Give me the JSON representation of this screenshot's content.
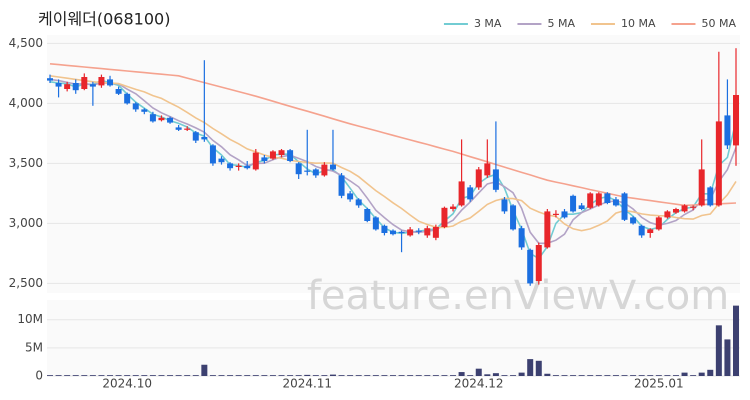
{
  "chart_data": [
    {
      "type": "candlestick",
      "title": "케이웨더(068100)",
      "annotations": [
        "feature.enViewV.com"
      ],
      "categories": [
        null,
        null,
        null,
        null,
        null,
        null,
        null,
        null,
        null,
        "2024.10",
        null,
        null,
        null,
        null,
        null,
        null,
        null,
        null,
        null,
        null,
        null,
        null,
        null,
        null,
        null,
        null,
        null,
        null,
        null,
        null,
        "2024.11",
        null,
        null,
        null,
        null,
        null,
        null,
        null,
        null,
        null,
        null,
        null,
        null,
        null,
        null,
        null,
        null,
        null,
        null,
        null,
        "2024.12",
        null,
        null,
        null,
        null,
        null,
        null,
        null,
        null,
        null,
        null,
        null,
        null,
        null,
        null,
        null,
        null,
        null,
        null,
        null,
        null,
        "2025.01",
        null,
        null,
        null,
        null,
        null,
        null,
        null,
        null,
        null
      ],
      "open": [
        4210,
        4170,
        4120,
        4170,
        4120,
        4160,
        4150,
        4200,
        4120,
        4080,
        4000,
        3950,
        3910,
        3860,
        3880,
        3800,
        3780,
        3760,
        3720,
        3650,
        3540,
        3500,
        3470,
        3480,
        3450,
        3550,
        3540,
        3570,
        3610,
        3500,
        3440,
        3450,
        3400,
        3490,
        3400,
        3250,
        3200,
        3120,
        3050,
        2980,
        2940,
        2930,
        2900,
        2940,
        2900,
        2880,
        2970,
        3120,
        3150,
        3300,
        3300,
        3400,
        3450,
        3200,
        3150,
        2960,
        2780,
        2520,
        2800,
        3070,
        3100,
        3230,
        3150,
        3130,
        3150,
        3250,
        3200,
        3250,
        3050,
        2980,
        2920,
        2950,
        3050,
        3090,
        3100,
        3130,
        3150,
        3300,
        3150,
        3900,
        3650
      ],
      "high": [
        4240,
        4200,
        4180,
        4200,
        4250,
        4180,
        4240,
        4230,
        4140,
        4090,
        4010,
        3960,
        3930,
        3900,
        3890,
        3820,
        3810,
        3770,
        4360,
        3660,
        3560,
        3510,
        3500,
        3520,
        3620,
        3570,
        3610,
        3620,
        3620,
        3510,
        3780,
        3460,
        3510,
        3780,
        3420,
        3270,
        3210,
        3130,
        3060,
        2990,
        2950,
        2940,
        2970,
        2960,
        2980,
        2990,
        3140,
        3160,
        3700,
        3320,
        3470,
        3700,
        3850,
        3220,
        3160,
        2980,
        2790,
        2840,
        3120,
        3110,
        3120,
        3240,
        3170,
        3260,
        3260,
        3260,
        3220,
        3260,
        3060,
        2990,
        2960,
        3060,
        3110,
        3130,
        3160,
        3150,
        3700,
        3310,
        4430,
        4200,
        4460
      ],
      "low": [
        4170,
        4050,
        4100,
        4080,
        4110,
        3980,
        4130,
        4140,
        4070,
        3990,
        3930,
        3910,
        3840,
        3850,
        3830,
        3770,
        3770,
        3670,
        3680,
        3480,
        3490,
        3440,
        3440,
        3450,
        3440,
        3500,
        3530,
        3550,
        3510,
        3370,
        3400,
        3380,
        3390,
        3440,
        3210,
        3180,
        3130,
        3010,
        2940,
        2900,
        2900,
        2760,
        2890,
        2910,
        2880,
        2860,
        2960,
        3100,
        3140,
        3180,
        3280,
        3380,
        3260,
        3080,
        2940,
        2780,
        2480,
        2490,
        2790,
        3050,
        3040,
        3090,
        3110,
        3120,
        3140,
        3160,
        3140,
        3020,
        2990,
        2880,
        2880,
        2940,
        3040,
        3080,
        3090,
        3110,
        3140,
        3140,
        3140,
        3620,
        3480
      ],
      "close": [
        4190,
        4140,
        4160,
        4110,
        4220,
        4140,
        4220,
        4150,
        4080,
        4000,
        3950,
        3930,
        3850,
        3880,
        3840,
        3780,
        3790,
        3690,
        3700,
        3500,
        3510,
        3460,
        3480,
        3460,
        3590,
        3520,
        3600,
        3610,
        3520,
        3410,
        3430,
        3400,
        3490,
        3450,
        3230,
        3200,
        3150,
        3020,
        2950,
        2920,
        2910,
        2920,
        2950,
        2930,
        2960,
        2970,
        3130,
        3140,
        3350,
        3200,
        3450,
        3500,
        3280,
        3100,
        2950,
        2800,
        2500,
        2820,
        3100,
        3080,
        3050,
        3100,
        3120,
        3250,
        3250,
        3170,
        3150,
        3030,
        3000,
        2900,
        2950,
        3050,
        3100,
        3120,
        3150,
        3140,
        3450,
        3150,
        3850,
        3650,
        4070
      ],
      "up_color": "#e8262b",
      "down_color": "#1b6fe0",
      "ylim": [
        2420,
        4570
      ],
      "yticks": [
        {
          "value": 2500,
          "label": "2,500"
        },
        {
          "value": 3000,
          "label": "3,000"
        },
        {
          "value": 3500,
          "label": "3,500"
        },
        {
          "value": 4000,
          "label": "4,000"
        },
        {
          "value": 4500,
          "label": "4,500"
        }
      ],
      "grid": true,
      "legend": "top-right",
      "lines": [
        {
          "name": "3 MA",
          "color": "#72ccd3",
          "values": [
            4180,
            4170,
            4163,
            4137,
            4163,
            4157,
            4193,
            4170,
            4150,
            4077,
            4010,
            3960,
            3910,
            3887,
            3857,
            3833,
            3803,
            3753,
            3727,
            3630,
            3570,
            3490,
            3483,
            3467,
            3510,
            3523,
            3570,
            3577,
            3577,
            3513,
            3453,
            3413,
            3440,
            3447,
            3390,
            3293,
            3193,
            3123,
            3040,
            2963,
            2927,
            2917,
            2927,
            2933,
            2947,
            2953,
            3020,
            3080,
            3207,
            3230,
            3333,
            3383,
            3410,
            3293,
            3110,
            2950,
            2750,
            2707,
            2807,
            3000,
            3077,
            3077,
            3090,
            3157,
            3207,
            3223,
            3190,
            3117,
            3060,
            2977,
            2950,
            2967,
            3033,
            3090,
            3123,
            3137,
            3247,
            3247,
            3483,
            3550,
            3857
          ]
        },
        {
          "name": "5 MA",
          "color": "#b3a3c6",
          "values": [
            4200,
            4190,
            4175,
            4160,
            4164,
            4154,
            4170,
            4168,
            4162,
            4118,
            4080,
            4022,
            3962,
            3922,
            3890,
            3856,
            3828,
            3796,
            3760,
            3692,
            3638,
            3572,
            3530,
            3482,
            3500,
            3502,
            3530,
            3556,
            3568,
            3542,
            3514,
            3474,
            3452,
            3436,
            3400,
            3354,
            3304,
            3210,
            3110,
            3048,
            2990,
            2944,
            2930,
            2926,
            2934,
            2946,
            2988,
            3026,
            3110,
            3178,
            3254,
            3328,
            3346,
            3306,
            3256,
            3126,
            2926,
            2834,
            2834,
            2860,
            2910,
            3030,
            3090,
            3120,
            3154,
            3178,
            3188,
            3170,
            3120,
            3050,
            3006,
            2986,
            3000,
            3024,
            3074,
            3112,
            3192,
            3202,
            3348,
            3448,
            3632
          ]
        },
        {
          "name": "10 MA",
          "color": "#f1c48e",
          "values": [
            4230,
            4220,
            4210,
            4200,
            4190,
            4180,
            4175,
            4170,
            4165,
            4141,
            4117,
            4096,
            4065,
            4042,
            4004,
            3968,
            3925,
            3879,
            3841,
            3791,
            3747,
            3700,
            3663,
            3621,
            3596,
            3570,
            3551,
            3543,
            3525,
            3516,
            3508,
            3502,
            3503,
            3502,
            3466,
            3434,
            3389,
            3330,
            3273,
            3224,
            3172,
            3124,
            3070,
            3018,
            2991,
            2968,
            2966,
            2978,
            3018,
            3046,
            3100,
            3158,
            3191,
            3208,
            3207,
            3190,
            3127,
            3095,
            3070,
            3058,
            2995,
            2955,
            2939,
            2954,
            2984,
            3021,
            3086,
            3107,
            3097,
            3079,
            3069,
            3064,
            3062,
            3049,
            3039,
            3036,
            3066,
            3078,
            3163,
            3238,
            3350
          ]
        },
        {
          "name": "50 MA",
          "color": "#f5a28e",
          "values": [
            4330,
            4323,
            4317,
            4310,
            4303,
            4297,
            4290,
            4283,
            4277,
            4270,
            4263,
            4257,
            4250,
            4243,
            4237,
            4230,
            4211,
            4192,
            4173,
            4154,
            4136,
            4117,
            4098,
            4079,
            4060,
            4039,
            4018,
            3997,
            3976,
            3955,
            3935,
            3914,
            3893,
            3872,
            3851,
            3830,
            3811,
            3792,
            3773,
            3753,
            3734,
            3715,
            3696,
            3677,
            3658,
            3638,
            3619,
            3600,
            3578,
            3556,
            3535,
            3513,
            3491,
            3469,
            3447,
            3425,
            3404,
            3382,
            3360,
            3344,
            3329,
            3313,
            3298,
            3282,
            3267,
            3251,
            3236,
            3220,
            3210,
            3200,
            3190,
            3180,
            3170,
            3160,
            3150,
            3153,
            3157,
            3160,
            3163,
            3167,
            3170
          ]
        }
      ]
    },
    {
      "type": "bar",
      "color": "#3c4070",
      "values": [
        150000,
        150000,
        150000,
        150000,
        150000,
        150000,
        150000,
        150000,
        150000,
        150000,
        150000,
        150000,
        150000,
        150000,
        150000,
        150000,
        150000,
        150000,
        2000000,
        150000,
        150000,
        150000,
        150000,
        150000,
        150000,
        150000,
        150000,
        150000,
        150000,
        150000,
        200000,
        150000,
        150000,
        250000,
        150000,
        150000,
        150000,
        150000,
        150000,
        150000,
        150000,
        150000,
        150000,
        150000,
        150000,
        150000,
        150000,
        150000,
        700000,
        150000,
        1300000,
        300000,
        500000,
        150000,
        150000,
        600000,
        3000000,
        2700000,
        400000,
        150000,
        150000,
        150000,
        150000,
        150000,
        150000,
        150000,
        150000,
        150000,
        150000,
        150000,
        150000,
        150000,
        150000,
        150000,
        600000,
        150000,
        600000,
        1100000,
        9000000,
        6500000,
        12500000
      ],
      "ylim": [
        0,
        13500000
      ],
      "yticks": [
        0,
        {
          "value": 5000000,
          "label": "5M"
        },
        {
          "value": 10000000,
          "label": "10M"
        }
      ],
      "grid": true
    }
  ]
}
